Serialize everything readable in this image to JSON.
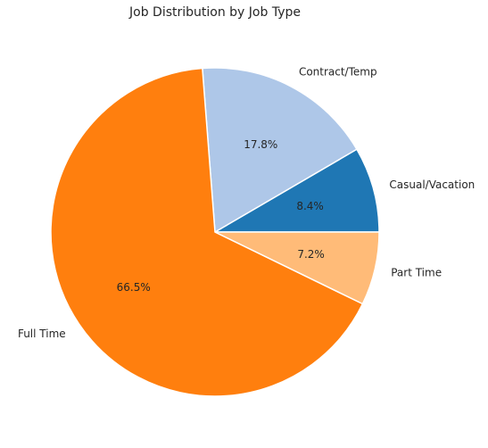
{
  "chart_data": {
    "type": "pie",
    "title": "Job Distribution by Job Type",
    "start_angle_deg": 0,
    "direction": "counterclockwise",
    "slices": [
      {
        "label": "Casual/Vacation",
        "value": 8.4,
        "pct_label": "8.4%",
        "color": "#1f77b4"
      },
      {
        "label": "Contract/Temp",
        "value": 17.8,
        "pct_label": "17.8%",
        "color": "#aec7e8"
      },
      {
        "label": "Full Time",
        "value": 66.5,
        "pct_label": "66.5%",
        "color": "#ff7f0e"
      },
      {
        "label": "Part Time",
        "value": 7.2,
        "pct_label": "7.2%",
        "color": "#ffbb78"
      }
    ],
    "slice_edge_color": "#ffffff"
  }
}
